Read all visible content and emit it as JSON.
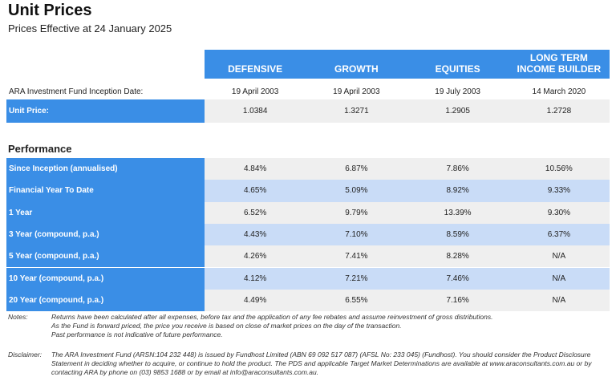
{
  "title": "Unit Prices",
  "subtitle": "Prices Effective at 24 January 2025",
  "columns": [
    "DEFENSIVE",
    "GROWTH",
    "EQUITIES",
    "LONG TERM INCOME BUILDER"
  ],
  "inception": {
    "label": "ARA Investment Fund Inception Date:",
    "values": [
      "19 April 2003",
      "19 April 2003",
      "19 July 2003",
      "14 March 2020"
    ]
  },
  "unit_price": {
    "label": "Unit Price:",
    "values": [
      "1.0384",
      "1.3271",
      "1.2905",
      "1.2728"
    ]
  },
  "performance_heading": "Performance",
  "performance": [
    {
      "label": "Since Inception (annualised)",
      "values": [
        "4.84%",
        "6.87%",
        "7.86%",
        "10.56%"
      ]
    },
    {
      "label": "Financial Year To Date",
      "values": [
        "4.65%",
        "5.09%",
        "8.92%",
        "9.33%"
      ]
    },
    {
      "label": "1 Year",
      "values": [
        "6.52%",
        "9.79%",
        "13.39%",
        "9.30%"
      ]
    },
    {
      "label": "3 Year (compound, p.a.)",
      "values": [
        "4.43%",
        "7.10%",
        "8.59%",
        "6.37%"
      ]
    },
    {
      "label": "5 Year (compound, p.a.)",
      "values": [
        "4.26%",
        "7.41%",
        "8.28%",
        "N/A"
      ]
    },
    {
      "label": "10 Year (compound, p.a.)",
      "values": [
        "4.12%",
        "7.21%",
        "7.46%",
        "N/A"
      ]
    },
    {
      "label": "20 Year (compound, p.a.)",
      "values": [
        "4.49%",
        "6.55%",
        "7.16%",
        "N/A"
      ]
    }
  ],
  "notes": {
    "label": "Notes:",
    "lines": [
      "Returns have been calculated after all expenses, before tax and the application of any fee rebates and assume reinvestment of gross distributions.",
      "As the Fund is forward priced, the price you receive is based on close of market prices on the day of the transaction.",
      "Past performance is not indicative of future performance."
    ]
  },
  "disclaimer": {
    "label": "Disclaimer:",
    "text": "The ARA Investment Fund (ARSN:104 232 448) is issued by Fundhost Limited (ABN 69 092 517 087) (AFSL No: 233 045) (Fundhost). You should consider the Product Disclosure Statement in deciding whether to acquire, or continue to hold the product. The PDS and applicable Target Market Determinations are available at www.araconsultants.com.au or by contacting ARA by phone on (03) 9853 1688 or by email at info@araconsultants.com.au."
  },
  "colors": {
    "accent": "#3a8ee6",
    "row_grey": "#efefef",
    "row_blue": "#c9dcf7"
  }
}
